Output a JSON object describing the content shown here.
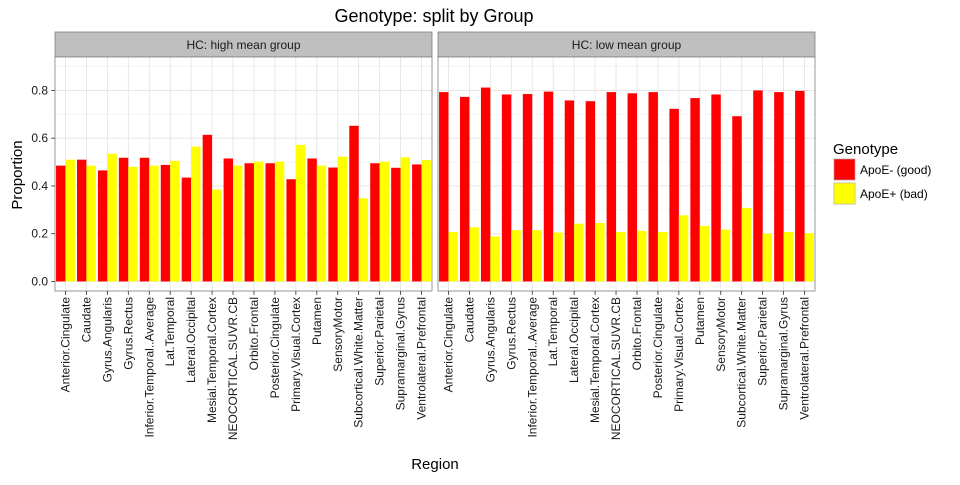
{
  "chart_data": {
    "type": "bar",
    "title": "Genotype: split by Group",
    "xlabel": "Region",
    "ylabel": "Proportion",
    "ylim": [
      -0.04,
      0.94
    ],
    "yticks": [
      "0.0",
      "0.2",
      "0.4",
      "0.6",
      "0.8"
    ],
    "grid": true,
    "legend_position": "right",
    "categories": [
      "Anterior.Cingulate",
      "Caudate",
      "Gyrus.Angularis",
      "Gyrus.Rectus",
      "Inferior.Temporal..Average",
      "Lat.Temporal",
      "Lateral.Occipital",
      "Mesial.Temporal.Cortex",
      "NEOCORTICAL.SUVR.CB",
      "Orbito.Frontal",
      "Posterior.Cingulate",
      "Primary.Visual.Cortex",
      "Putamen",
      "SensoryMotor",
      "Subcortical.White.Matter",
      "Superior.Parietal",
      "Supramarginal.Gyrus",
      "Ventrolateral.Prefrontal"
    ],
    "legend": {
      "title": "Genotype",
      "entries": [
        {
          "label": "ApoE- (good)",
          "color": "#ff0000"
        },
        {
          "label": "ApoE+ (bad)",
          "color": "#ffff00"
        }
      ]
    },
    "panels": [
      {
        "strip": "HC: high mean group",
        "series": [
          {
            "name": "ApoE- (good)",
            "color": "#ff0000",
            "values": [
              0.485,
              0.51,
              0.465,
              0.518,
              0.518,
              0.488,
              0.435,
              0.614,
              0.515,
              0.495,
              0.495,
              0.428,
              0.515,
              0.477,
              0.652,
              0.495,
              0.476,
              0.49
            ]
          },
          {
            "name": "ApoE+ (bad)",
            "color": "#ffff00",
            "values": [
              0.51,
              0.485,
              0.535,
              0.48,
              0.485,
              0.505,
              0.565,
              0.385,
              0.485,
              0.502,
              0.502,
              0.572,
              0.485,
              0.523,
              0.348,
              0.502,
              0.52,
              0.508
            ]
          }
        ]
      },
      {
        "strip": "HC: low mean group",
        "series": [
          {
            "name": "ApoE- (good)",
            "color": "#ff0000",
            "values": [
              0.793,
              0.773,
              0.812,
              0.783,
              0.785,
              0.795,
              0.758,
              0.755,
              0.793,
              0.788,
              0.793,
              0.723,
              0.768,
              0.783,
              0.692,
              0.8,
              0.793,
              0.798
            ]
          },
          {
            "name": "ApoE+ (bad)",
            "color": "#ffff00",
            "values": [
              0.207,
              0.227,
              0.188,
              0.215,
              0.215,
              0.205,
              0.242,
              0.245,
              0.207,
              0.212,
              0.207,
              0.277,
              0.232,
              0.217,
              0.308,
              0.2,
              0.207,
              0.202
            ]
          }
        ]
      }
    ]
  }
}
